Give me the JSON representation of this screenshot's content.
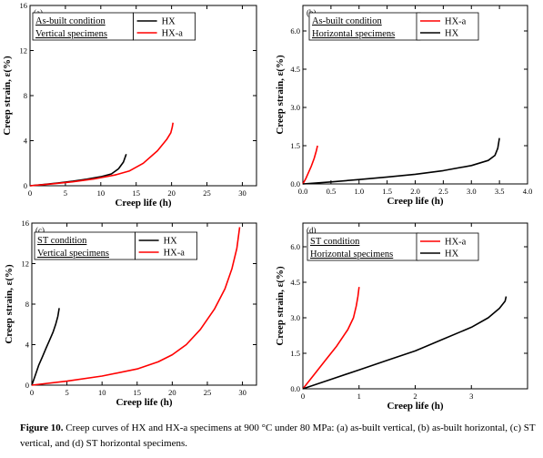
{
  "chart_data": [
    {
      "type": "line",
      "panel_label": "(a)",
      "xlabel": "Creep life (h)",
      "ylabel": "Creep strain, ε(%)",
      "xlim": [
        0,
        32
      ],
      "ylim": [
        0,
        16
      ],
      "xticks": [
        "0",
        "5",
        "10",
        "15",
        "20",
        "25",
        "30"
      ],
      "yticks": [
        "0",
        "4",
        "8",
        "12",
        "16"
      ],
      "condition_lines": [
        "As-built condition",
        "Vertical specimens"
      ],
      "legend_position": "top-left",
      "series": [
        {
          "name": "HX",
          "color": "#000000",
          "x": [
            0,
            2,
            4,
            6,
            8,
            10,
            11.5,
            12.5,
            13.2,
            13.6
          ],
          "y": [
            0,
            0.12,
            0.25,
            0.4,
            0.58,
            0.8,
            1.05,
            1.5,
            2.1,
            2.8
          ]
        },
        {
          "name": "HX-a",
          "color": "#ff0000",
          "x": [
            0,
            3,
            6,
            9,
            12,
            14,
            16,
            18,
            19.3,
            19.9,
            20.1,
            20.2
          ],
          "y": [
            0,
            0.15,
            0.35,
            0.6,
            0.95,
            1.3,
            2.0,
            3.1,
            4.1,
            4.7,
            5.2,
            5.6
          ]
        }
      ]
    },
    {
      "type": "line",
      "panel_label": "(b)",
      "xlabel": "Creep life (h)",
      "ylabel": "Creep strain, ε(%)",
      "xlim": [
        0,
        4.0
      ],
      "ylim": [
        0,
        7.0
      ],
      "xticks": [
        "0.0",
        "0.5",
        "1.0",
        "1.5",
        "2.0",
        "2.5",
        "3.0",
        "3.5",
        "4.0"
      ],
      "yticks": [
        "0.0",
        "1.5",
        "3.0",
        "4.5",
        "6.0"
      ],
      "condition_lines": [
        "As-built condition",
        "Horizontal specimens"
      ],
      "legend_position": "top-right",
      "series": [
        {
          "name": "HX-a",
          "color": "#ff0000",
          "x": [
            0,
            0.05,
            0.1,
            0.15,
            0.2,
            0.24,
            0.26
          ],
          "y": [
            0,
            0.2,
            0.45,
            0.7,
            1.0,
            1.3,
            1.5
          ]
        },
        {
          "name": "HX",
          "color": "#000000",
          "x": [
            0,
            0.5,
            1.0,
            1.5,
            2.0,
            2.5,
            3.0,
            3.3,
            3.42,
            3.47,
            3.5
          ],
          "y": [
            0,
            0.08,
            0.17,
            0.27,
            0.38,
            0.52,
            0.72,
            0.92,
            1.12,
            1.4,
            1.8
          ]
        }
      ]
    },
    {
      "type": "line",
      "panel_label": "(c)",
      "xlabel": "Creep life (h)",
      "ylabel": "Creep strain, ε(%)",
      "xlim": [
        0,
        32
      ],
      "ylim": [
        0,
        16
      ],
      "xticks": [
        "0",
        "5",
        "10",
        "15",
        "20",
        "25",
        "30"
      ],
      "yticks": [
        "0",
        "4",
        "8",
        "12",
        "16"
      ],
      "condition_lines": [
        "ST condition",
        "Vertical specimens"
      ],
      "legend_position": "top-left",
      "series": [
        {
          "name": "HX",
          "color": "#000000",
          "x": [
            0,
            0.5,
            1.0,
            1.5,
            2.0,
            2.5,
            3.0,
            3.4,
            3.7,
            3.9
          ],
          "y": [
            0,
            1.0,
            2.0,
            2.8,
            3.6,
            4.4,
            5.2,
            6.0,
            6.8,
            7.6
          ]
        },
        {
          "name": "HX-a",
          "color": "#ff0000",
          "x": [
            0,
            5,
            10,
            15,
            18,
            20,
            22,
            24,
            26,
            27.5,
            28.5,
            29.2,
            29.6
          ],
          "y": [
            0,
            0.4,
            0.9,
            1.6,
            2.3,
            3.0,
            4.0,
            5.5,
            7.5,
            9.5,
            11.5,
            13.5,
            15.6
          ]
        }
      ]
    },
    {
      "type": "line",
      "panel_label": "(d)",
      "xlabel": "Creep life (h)",
      "ylabel": "Creep strain, ε(%)",
      "xlim": [
        0,
        4
      ],
      "ylim": [
        0,
        7.0
      ],
      "xticks": [
        "0",
        "1",
        "2",
        "3"
      ],
      "yticks": [
        "0.0",
        "1.5",
        "3.0",
        "4.5",
        "6.0"
      ],
      "condition_lines": [
        "ST condition",
        "Horizontal specimens"
      ],
      "legend_position": "top-right",
      "series": [
        {
          "name": "HX-a",
          "color": "#ff0000",
          "x": [
            0,
            0.2,
            0.4,
            0.6,
            0.8,
            0.9,
            0.95,
            0.98,
            1.0
          ],
          "y": [
            0,
            0.6,
            1.2,
            1.8,
            2.5,
            3.0,
            3.5,
            3.9,
            4.3
          ]
        },
        {
          "name": "HX",
          "color": "#000000",
          "x": [
            0,
            0.5,
            1.0,
            1.5,
            2.0,
            2.5,
            3.0,
            3.3,
            3.5,
            3.6,
            3.62
          ],
          "y": [
            0,
            0.4,
            0.8,
            1.2,
            1.6,
            2.1,
            2.6,
            3.0,
            3.4,
            3.7,
            3.9
          ]
        }
      ]
    }
  ],
  "caption": {
    "fig_label": "Figure 10.",
    "text": " Creep curves of HX and HX-a specimens at 900 °C under 80 MPa: (a) as-built vertical, (b) as-built horizontal, (c) ST vertical, and (d) ST horizontal specimens."
  }
}
